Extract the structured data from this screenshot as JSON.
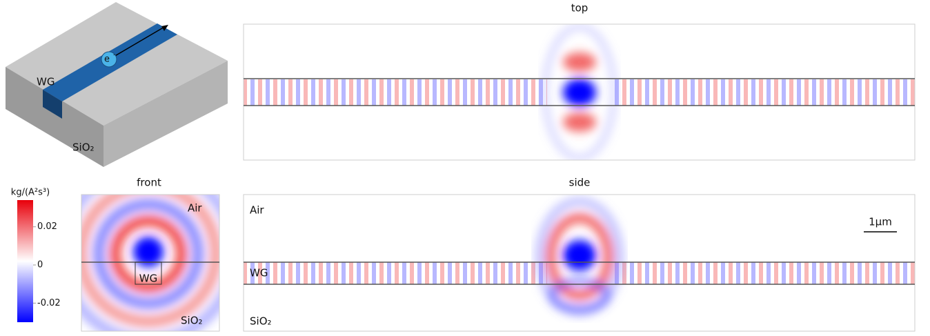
{
  "schematic": {
    "waveguide": "WG",
    "substrate": "SiO₂",
    "electron": "e",
    "electron_charge": "-"
  },
  "panels": {
    "top": {
      "title": "top"
    },
    "front": {
      "title": "front",
      "air": "Air",
      "waveguide": "WG",
      "substrate": "SiO₂"
    },
    "side": {
      "title": "side",
      "air": "Air",
      "waveguide": "WG",
      "substrate": "SiO₂",
      "scale_bar": "1µm"
    }
  },
  "colorbar": {
    "label": "kg/(A²s³)",
    "lim": [
      -0.03,
      0.034
    ],
    "ticks": [
      0.02,
      0,
      -0.02
    ]
  }
}
